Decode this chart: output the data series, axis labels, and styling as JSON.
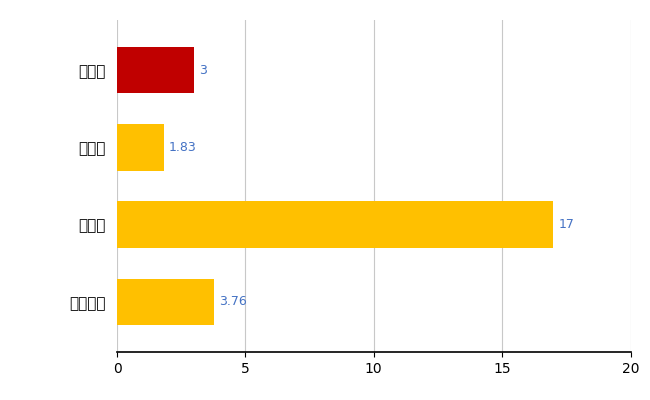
{
  "categories": [
    "木曽町",
    "県平均",
    "県最大",
    "全国平均"
  ],
  "values": [
    3,
    1.83,
    17,
    3.76
  ],
  "colors": [
    "#C00000",
    "#FFC000",
    "#FFC000",
    "#FFC000"
  ],
  "value_labels": [
    "3",
    "1.83",
    "17",
    "3.76"
  ],
  "label_color": "#4472C4",
  "xlim": [
    0,
    20
  ],
  "xticks": [
    0,
    5,
    10,
    15,
    20
  ],
  "background_color": "#FFFFFF",
  "grid_color": "#C8C8C8",
  "bar_height": 0.6,
  "figsize": [
    6.5,
    4.0
  ],
  "dpi": 100
}
